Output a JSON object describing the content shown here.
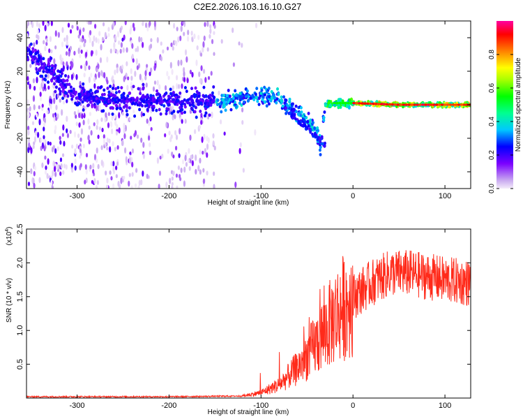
{
  "title": "C2E2.2026.103.16.10.G27",
  "colors": {
    "snr_line": "#ff2a1a",
    "frame": "#000000",
    "background": "#ffffff"
  },
  "chart_data": [
    {
      "type": "heatmap",
      "name": "spectrogram",
      "xlabel": "Height of straight line (km)",
      "ylabel": "Frequency (Hz)",
      "xlim": [
        -355,
        128
      ],
      "ylim": [
        -50,
        50
      ],
      "xticks": [
        -300,
        -200,
        -100,
        0,
        100
      ],
      "yticks": [
        -40,
        -20,
        0,
        20,
        40
      ],
      "colorbar": {
        "label": "Normalized spectral amplitude",
        "range": [
          0,
          1
        ],
        "ticks": [
          "0.0",
          "0.2",
          "0.4",
          "0.6",
          "0.8"
        ],
        "tick_values": [
          0.0,
          0.2,
          0.4,
          0.6,
          0.8
        ]
      },
      "signal_track": [
        {
          "x": -340,
          "f": 25
        },
        {
          "x": -300,
          "f": 5
        },
        {
          "x": -250,
          "f": 3
        },
        {
          "x": -200,
          "f": 2
        },
        {
          "x": -150,
          "f": 2
        },
        {
          "x": -120,
          "f": 4
        },
        {
          "x": -100,
          "f": 6
        },
        {
          "x": -80,
          "f": 3
        },
        {
          "x": -60,
          "f": -5
        },
        {
          "x": -40,
          "f": -15
        },
        {
          "x": -35,
          "f": -25
        },
        {
          "x": -30,
          "f": 0
        },
        {
          "x": -20,
          "f": 1
        },
        {
          "x": 0,
          "f": 1
        },
        {
          "x": 50,
          "f": 0
        },
        {
          "x": 128,
          "f": 0
        }
      ]
    },
    {
      "type": "line",
      "name": "snr",
      "xlabel": "Height of straight line (km)",
      "ylabel": "SNR (10 * v/v)",
      "exponent_label": "(x10",
      "exponent_power": "4",
      "exponent_close": ")",
      "xlim": [
        -355,
        128
      ],
      "ylim": [
        0,
        2.5
      ],
      "xticks": [
        -300,
        -200,
        -100,
        0,
        100
      ],
      "yticks": [
        0.5,
        1.0,
        1.5,
        2.0,
        2.5
      ],
      "ytick_labels": [
        "0.5",
        "1.0",
        "1.5",
        "2.0",
        "2.5"
      ],
      "trend": [
        {
          "x": -355,
          "y": 0.02
        },
        {
          "x": -200,
          "y": 0.02
        },
        {
          "x": -120,
          "y": 0.03
        },
        {
          "x": -100,
          "y": 0.08
        },
        {
          "x": -80,
          "y": 0.2
        },
        {
          "x": -60,
          "y": 0.45
        },
        {
          "x": -40,
          "y": 0.8
        },
        {
          "x": -20,
          "y": 1.2
        },
        {
          "x": 0,
          "y": 1.5
        },
        {
          "x": 20,
          "y": 1.7
        },
        {
          "x": 40,
          "y": 1.85
        },
        {
          "x": 60,
          "y": 1.85
        },
        {
          "x": 80,
          "y": 1.8
        },
        {
          "x": 100,
          "y": 1.75
        },
        {
          "x": 128,
          "y": 1.7
        }
      ]
    }
  ]
}
